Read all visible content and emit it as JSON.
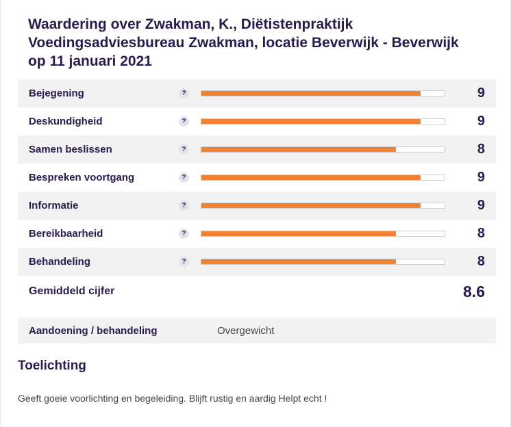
{
  "title_line1": "Waardering over Zwakman, K., Diëtistenpraktijk",
  "title_line2": "Voedingsadviesbureau Zwakman, locatie Beverwijk - Beverwijk",
  "title_line3": "op 11 januari 2021",
  "help_symbol": "?",
  "scale_max": 10,
  "bar_color": "#f08232",
  "ratings": [
    {
      "label": "Bejegening",
      "score": "9",
      "value": 9
    },
    {
      "label": "Deskundigheid",
      "score": "9",
      "value": 9
    },
    {
      "label": "Samen beslissen",
      "score": "8",
      "value": 8
    },
    {
      "label": "Bespreken voortgang",
      "score": "9",
      "value": 9
    },
    {
      "label": "Informatie",
      "score": "9",
      "value": 9
    },
    {
      "label": "Bereikbaarheid",
      "score": "8",
      "value": 8
    },
    {
      "label": "Behandeling",
      "score": "8",
      "value": 8
    }
  ],
  "average": {
    "label": "Gemiddeld cijfer",
    "score": "8.6"
  },
  "condition": {
    "label": "Aandoening / behandeling",
    "value": "Overgewicht"
  },
  "toelichting": {
    "title": "Toelichting",
    "text": "Geeft goeie voorlichting en begeleiding. Blijft rustig en aardig Helpt echt !"
  }
}
